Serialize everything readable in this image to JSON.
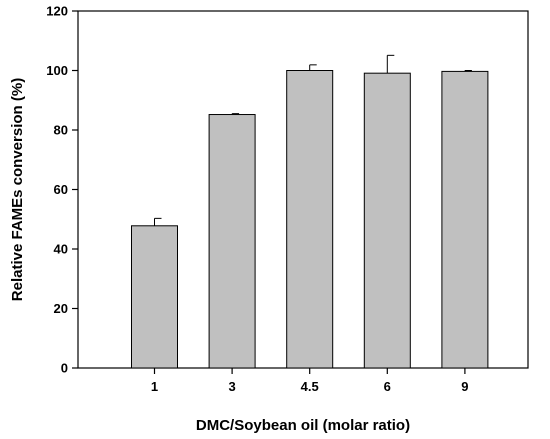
{
  "chart_data": {
    "type": "bar",
    "categories": [
      "1",
      "3",
      "4.5",
      "6",
      "9"
    ],
    "values": [
      47.8,
      85.2,
      100.0,
      99.1,
      99.7
    ],
    "errors": [
      2.5,
      0.3,
      1.9,
      6.0,
      0.3
    ],
    "title": "",
    "xlabel": "DMC/Soybean oil (molar ratio)",
    "ylabel": "Relative FAMEs conversion (%)",
    "ylim": [
      0,
      120
    ],
    "yticks": [
      0,
      20,
      40,
      60,
      80,
      100,
      120
    ],
    "grid": false,
    "colors": {
      "bar_fill": "#c0c0c0",
      "bar_stroke": "#000000",
      "axis": "#000000"
    }
  }
}
